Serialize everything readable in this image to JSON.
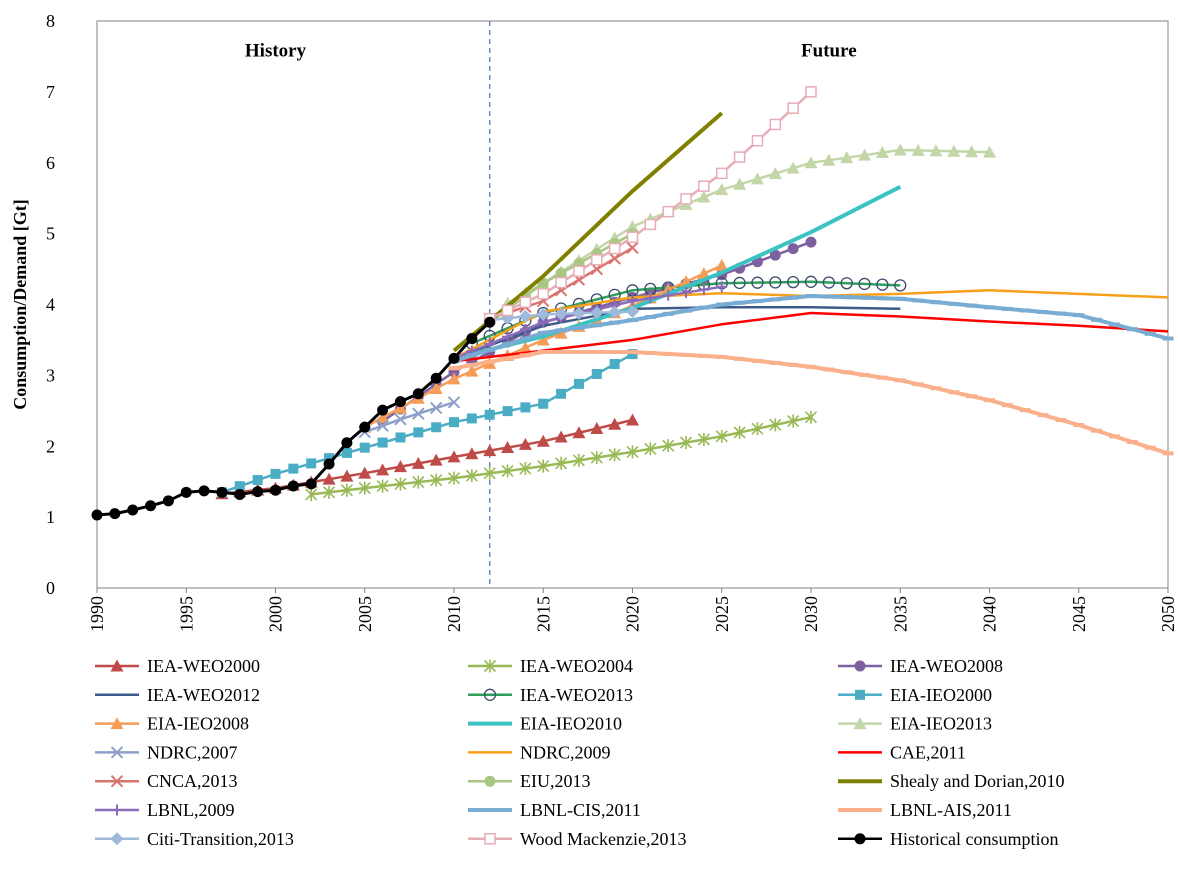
{
  "chart_data": {
    "type": "line",
    "title": "",
    "xlabel": "",
    "ylabel": "Consumption/Demand [Gt]",
    "xlim": [
      1990,
      2050
    ],
    "ylim": [
      0,
      8
    ],
    "x_ticks": [
      1990,
      1995,
      2000,
      2005,
      2010,
      2015,
      2020,
      2025,
      2030,
      2035,
      2040,
      2045,
      2050
    ],
    "y_ticks": [
      0,
      1,
      2,
      3,
      4,
      5,
      6,
      7,
      8
    ],
    "grid": false,
    "legend_position": "bottom",
    "annotations": [
      {
        "text": "History",
        "x": 2000,
        "y": 7.6
      },
      {
        "text": "Future",
        "x": 2031,
        "y": 7.6
      }
    ],
    "divider_x": 2012,
    "series": [
      {
        "name": "IEA-WEO2000",
        "color": "#be4b48",
        "marker": "triangle",
        "points": [
          [
            1997,
            1.33
          ],
          [
            2000,
            1.41
          ],
          [
            2005,
            1.62
          ],
          [
            2010,
            1.85
          ],
          [
            2015,
            2.07
          ],
          [
            2020,
            2.37
          ]
        ]
      },
      {
        "name": "IEA-WEO2004",
        "color": "#98b954",
        "marker": "star",
        "points": [
          [
            2002,
            1.32
          ],
          [
            2005,
            1.41
          ],
          [
            2010,
            1.55
          ],
          [
            2015,
            1.72
          ],
          [
            2020,
            1.92
          ],
          [
            2025,
            2.14
          ],
          [
            2030,
            2.41
          ]
        ]
      },
      {
        "name": "IEA-WEO2008",
        "color": "#7d60a0",
        "marker": "circle",
        "points": [
          [
            2006,
            2.35
          ],
          [
            2010,
            3.05
          ],
          [
            2015,
            3.75
          ],
          [
            2020,
            4.1
          ],
          [
            2025,
            4.42
          ],
          [
            2030,
            4.88
          ]
        ]
      },
      {
        "name": "IEA-WEO2012",
        "color": "#3d5a8a",
        "marker": "none",
        "points": [
          [
            2010,
            3.24
          ],
          [
            2015,
            3.7
          ],
          [
            2020,
            3.94
          ],
          [
            2025,
            3.96
          ],
          [
            2030,
            3.96
          ],
          [
            2035,
            3.94
          ]
        ]
      },
      {
        "name": "IEA-WEO2013",
        "color": "#2e9e5b",
        "marker": "open-circle",
        "points": [
          [
            2011,
            3.45
          ],
          [
            2015,
            3.88
          ],
          [
            2020,
            4.2
          ],
          [
            2025,
            4.3
          ],
          [
            2030,
            4.32
          ],
          [
            2035,
            4.27
          ]
        ]
      },
      {
        "name": "EIA-IEO2000",
        "color": "#4aacc5",
        "marker": "square",
        "points": [
          [
            1997,
            1.35
          ],
          [
            2000,
            1.61
          ],
          [
            2005,
            1.98
          ],
          [
            2010,
            2.34
          ],
          [
            2015,
            2.6
          ],
          [
            2020,
            3.3
          ]
        ]
      },
      {
        "name": "EIA-IEO2008",
        "color": "#f59d56",
        "marker": "triangle",
        "points": [
          [
            2005,
            2.27
          ],
          [
            2010,
            2.95
          ],
          [
            2015,
            3.5
          ],
          [
            2020,
            3.98
          ],
          [
            2025,
            4.55
          ]
        ]
      },
      {
        "name": "EIA-IEO2010",
        "color": "#3bc2c2",
        "marker": "none",
        "points": [
          [
            2010,
            3.24
          ],
          [
            2015,
            3.55
          ],
          [
            2020,
            3.95
          ],
          [
            2025,
            4.45
          ],
          [
            2030,
            5.02
          ],
          [
            2035,
            5.66
          ]
        ]
      },
      {
        "name": "EIA-IEO2013",
        "color": "#c3d6a8",
        "marker": "triangle",
        "points": [
          [
            2013,
            4.02
          ],
          [
            2015,
            4.3
          ],
          [
            2020,
            5.1
          ],
          [
            2025,
            5.62
          ],
          [
            2030,
            6.0
          ],
          [
            2035,
            6.18
          ],
          [
            2040,
            6.15
          ]
        ]
      },
      {
        "name": "NDRC,2007",
        "color": "#8ea0c9",
        "marker": "x",
        "points": [
          [
            2005,
            2.2
          ],
          [
            2007,
            2.38
          ],
          [
            2010,
            2.62
          ]
        ]
      },
      {
        "name": "NDRC,2009",
        "color": "#f7a11a",
        "marker": "none",
        "points": [
          [
            2010,
            3.24
          ],
          [
            2015,
            3.9
          ],
          [
            2020,
            4.1
          ],
          [
            2025,
            4.16
          ],
          [
            2030,
            4.12
          ],
          [
            2035,
            4.15
          ],
          [
            2040,
            4.2
          ],
          [
            2050,
            4.1
          ]
        ]
      },
      {
        "name": "CAE,2011",
        "color": "#ff0000",
        "marker": "none",
        "points": [
          [
            2010,
            3.2
          ],
          [
            2015,
            3.35
          ],
          [
            2020,
            3.5
          ],
          [
            2025,
            3.72
          ],
          [
            2030,
            3.88
          ],
          [
            2035,
            3.83
          ],
          [
            2040,
            3.76
          ],
          [
            2045,
            3.7
          ],
          [
            2050,
            3.62
          ]
        ]
      },
      {
        "name": "CNCA,2013",
        "color": "#d9736f",
        "marker": "x",
        "points": [
          [
            2012,
            3.8
          ],
          [
            2015,
            4.05
          ],
          [
            2020,
            4.8
          ]
        ]
      },
      {
        "name": "EIU,2013",
        "color": "#a9c783",
        "marker": "circle",
        "points": [
          [
            2012,
            3.75
          ],
          [
            2015,
            4.3
          ],
          [
            2020,
            5.0
          ]
        ]
      },
      {
        "name": "Shealy and Dorian,2010",
        "color": "#808000",
        "marker": "none",
        "points": [
          [
            2010,
            3.35
          ],
          [
            2015,
            4.4
          ],
          [
            2020,
            5.6
          ],
          [
            2025,
            6.7
          ]
        ]
      },
      {
        "name": "LBNL,2009",
        "color": "#8c6bb8",
        "marker": "plus",
        "points": [
          [
            2010,
            3.24
          ],
          [
            2015,
            3.75
          ],
          [
            2020,
            4.05
          ],
          [
            2025,
            4.25
          ]
        ]
      },
      {
        "name": "LBNL-CIS,2011",
        "color": "#78acd3",
        "marker": "dash",
        "points": [
          [
            2010,
            3.2
          ],
          [
            2015,
            3.6
          ],
          [
            2020,
            3.78
          ],
          [
            2025,
            4.0
          ],
          [
            2030,
            4.12
          ],
          [
            2035,
            4.08
          ],
          [
            2040,
            3.96
          ],
          [
            2045,
            3.85
          ],
          [
            2050,
            3.52
          ]
        ]
      },
      {
        "name": "LBNL-AIS,2011",
        "color": "#fab08a",
        "marker": "dash",
        "points": [
          [
            2010,
            3.1
          ],
          [
            2015,
            3.33
          ],
          [
            2020,
            3.33
          ],
          [
            2025,
            3.26
          ],
          [
            2030,
            3.12
          ],
          [
            2035,
            2.93
          ],
          [
            2040,
            2.65
          ],
          [
            2045,
            2.3
          ],
          [
            2050,
            1.9
          ]
        ]
      },
      {
        "name": "Citi-Transition,2013",
        "color": "#9fb9dc",
        "marker": "diamond",
        "points": [
          [
            2012,
            3.78
          ],
          [
            2015,
            3.86
          ],
          [
            2020,
            3.9
          ]
        ]
      },
      {
        "name": "Wood Mackenzie,2013",
        "color": "#e6adb6",
        "marker": "open-square",
        "points": [
          [
            2012,
            3.8
          ],
          [
            2015,
            4.15
          ],
          [
            2020,
            4.95
          ],
          [
            2025,
            5.85
          ],
          [
            2030,
            7.0
          ]
        ]
      },
      {
        "name": "Historical consumption",
        "color": "#000000",
        "marker": "circle",
        "points": [
          [
            1990,
            1.03
          ],
          [
            1991,
            1.05
          ],
          [
            1992,
            1.1
          ],
          [
            1993,
            1.16
          ],
          [
            1994,
            1.23
          ],
          [
            1995,
            1.35
          ],
          [
            1996,
            1.37
          ],
          [
            1997,
            1.35
          ],
          [
            1998,
            1.32
          ],
          [
            1999,
            1.36
          ],
          [
            2000,
            1.38
          ],
          [
            2001,
            1.44
          ],
          [
            2002,
            1.47
          ],
          [
            2003,
            1.75
          ],
          [
            2004,
            2.05
          ],
          [
            2005,
            2.27
          ],
          [
            2006,
            2.51
          ],
          [
            2007,
            2.63
          ],
          [
            2008,
            2.74
          ],
          [
            2009,
            2.96
          ],
          [
            2010,
            3.24
          ],
          [
            2011,
            3.52
          ],
          [
            2012,
            3.75
          ]
        ]
      }
    ]
  }
}
